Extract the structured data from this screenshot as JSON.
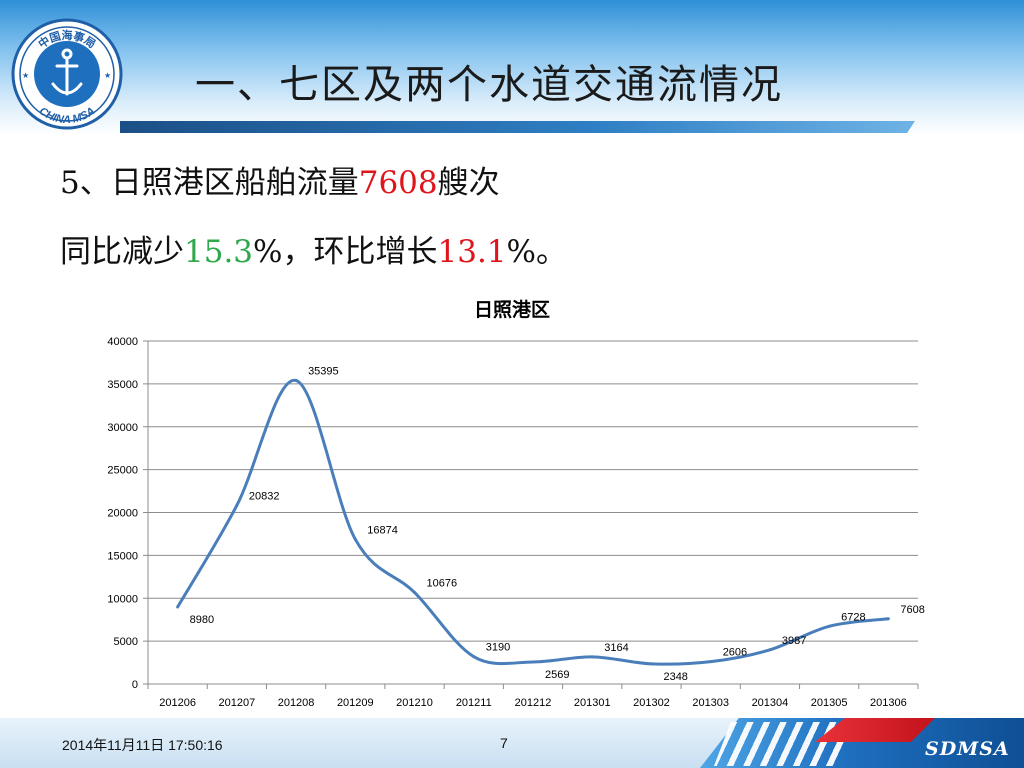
{
  "slide": {
    "title": "一、七区及两个水道交通流情况",
    "line1_prefix": "5、日照港区船舶流量",
    "line1_value": "7608",
    "line1_suffix": "艘次",
    "line2_prefix": "同比减少",
    "line2_yoy": "15.3",
    "line2_mid": "%，环比增长",
    "line2_mom": "13.1",
    "line2_suffix": "%。"
  },
  "logo": {
    "top_text": "中国海事局",
    "bottom_text": "CHINA MSA",
    "icon": "anchor-icon"
  },
  "footer": {
    "date": "2014年11月11日  17:50:16",
    "page": "7",
    "brand": "SDMSA"
  },
  "colors": {
    "line": "#4a7ebb",
    "red": "#e0141b",
    "green": "#2ea84a",
    "grid": "#8c8c8c"
  },
  "chart_data": {
    "type": "line",
    "title": "日照港区",
    "categories": [
      "201206",
      "201207",
      "201208",
      "201209",
      "201210",
      "201211",
      "201212",
      "201301",
      "201302",
      "201303",
      "201304",
      "201305",
      "201306"
    ],
    "values": [
      8980,
      20832,
      35395,
      16874,
      10676,
      3190,
      2569,
      3164,
      2348,
      2606,
      3987,
      6728,
      7608
    ],
    "y_ticks": [
      0,
      5000,
      10000,
      15000,
      20000,
      25000,
      30000,
      35000,
      40000
    ],
    "ylim": [
      0,
      40000
    ],
    "smooth": true,
    "grid": "horizontal",
    "legend": "none"
  }
}
